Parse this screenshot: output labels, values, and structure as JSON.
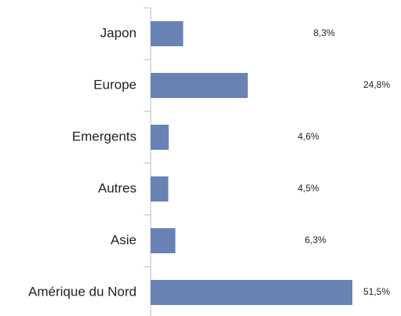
{
  "chart_data": {
    "type": "bar",
    "orientation": "horizontal",
    "categories": [
      "Japon",
      "Europe",
      "Emergents",
      "Autres",
      "Asie",
      "Amérique du Nord"
    ],
    "values": [
      8.3,
      24.8,
      4.6,
      4.5,
      6.3,
      51.5
    ],
    "value_labels": [
      "8,3%",
      "24,8%",
      "4,6%",
      "4,5%",
      "6,3%",
      "51,5%"
    ],
    "color": "#6883b3"
  }
}
